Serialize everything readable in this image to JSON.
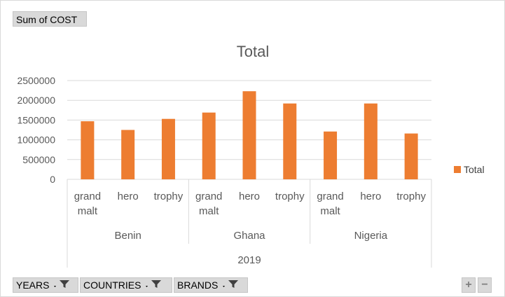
{
  "value_field_label": "Sum of COST",
  "filter_buttons": [
    "YEARS",
    "COUNTRIES",
    "BRANDS"
  ],
  "zoom": {
    "plus": "+",
    "minus": "−"
  },
  "colors": {
    "bar": "#ED7D31",
    "grid": "#d9d9d9",
    "text": "#595959"
  },
  "chart_data": {
    "type": "bar",
    "title": "Total",
    "xlabel": "",
    "ylabel": "",
    "ylim": [
      0,
      2500000
    ],
    "yticks": [
      "0",
      "500000",
      "1000000",
      "1500000",
      "2000000",
      "2500000"
    ],
    "categories": [
      [
        "grand",
        "malt"
      ],
      [
        "hero"
      ],
      [
        "trophy"
      ],
      [
        "grand",
        "malt"
      ],
      [
        "hero"
      ],
      [
        "trophy"
      ],
      [
        "grand",
        "malt"
      ],
      [
        "hero"
      ],
      [
        "trophy"
      ]
    ],
    "groups": [
      "Benin",
      "Ghana",
      "Nigeria"
    ],
    "outer_group": "2019",
    "series": [
      {
        "name": "Total",
        "values": [
          1470000,
          1250000,
          1530000,
          1690000,
          2230000,
          1920000,
          1210000,
          1920000,
          1160000
        ]
      }
    ],
    "legend": "right",
    "grid": true
  }
}
